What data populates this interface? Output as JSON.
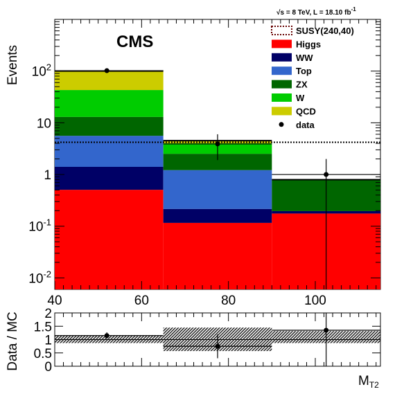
{
  "chart_data": [
    {
      "type": "bar",
      "stacked": true,
      "ylabel": "Events",
      "yscale": "log",
      "ylim": [
        0.006,
        1000
      ],
      "xlim": [
        40,
        115
      ],
      "annotation": "CMS",
      "lumi_label": "√s = 8 TeV, L = 18.10 fb",
      "lumi_unit_exp": "-1",
      "x_ticks": [
        "40",
        "60",
        "80",
        "100"
      ],
      "x_tick_values": [
        40,
        60,
        80,
        100
      ],
      "y_ticks": [
        {
          "value": 0.01,
          "base": "10",
          "exp": "-2"
        },
        {
          "value": 0.1,
          "base": "10",
          "exp": "-1"
        },
        {
          "value": 1,
          "base": "1",
          "exp": ""
        },
        {
          "value": 10,
          "base": "10",
          "exp": ""
        },
        {
          "value": 100,
          "base": "10",
          "exp": "2"
        }
      ],
      "bins": [
        [
          40,
          65
        ],
        [
          65,
          90
        ],
        [
          90,
          115
        ]
      ],
      "series": [
        {
          "name": "Higgs",
          "color": "#ff0000",
          "values": [
            0.5,
            0.11,
            0.17
          ]
        },
        {
          "name": "WW",
          "color": "#000066",
          "values": [
            0.9,
            0.1,
            0.02
          ]
        },
        {
          "name": "Top",
          "color": "#3366cc",
          "values": [
            4.2,
            1.0,
            0
          ]
        },
        {
          "name": "ZX",
          "color": "#006600",
          "values": [
            7.4,
            1.3,
            0.6
          ]
        },
        {
          "name": "W",
          "color": "#00cc00",
          "values": [
            30,
            1.5,
            0
          ]
        },
        {
          "name": "QCD",
          "color": "#cccc00",
          "values": [
            57,
            0.5,
            0
          ]
        }
      ],
      "signal": {
        "name": "SUSY(240,40)",
        "color": "#660000",
        "value": 4.2
      },
      "data": {
        "name": "data",
        "x": [
          52,
          77.5,
          102.5
        ],
        "y": [
          102,
          3.9,
          1.0
        ],
        "yerr_low": [
          10,
          2.0,
          1.0
        ],
        "yerr_high": [
          10,
          2.1,
          1.0
        ]
      }
    },
    {
      "type": "scatter",
      "ylabel": "Data / MC",
      "xlabel": "M",
      "xlabel_sub": "T2",
      "ylim": [
        0,
        2
      ],
      "xlim": [
        40,
        115
      ],
      "y_ticks": [
        "0",
        "0.5",
        "1",
        "1.5",
        "2"
      ],
      "y_tick_values": [
        0,
        0.5,
        1,
        1.5,
        2
      ],
      "bins": [
        [
          40,
          65
        ],
        [
          65,
          90
        ],
        [
          90,
          115
        ]
      ],
      "band_low": [
        0.87,
        0.57,
        0.87
      ],
      "band_high": [
        1.16,
        1.45,
        1.32
      ],
      "ratio": [
        1.15,
        0.75,
        1.35
      ],
      "ratio_err": [
        0.12,
        0.45,
        1.35
      ],
      "x": [
        52,
        77.5,
        102.5
      ]
    }
  ]
}
